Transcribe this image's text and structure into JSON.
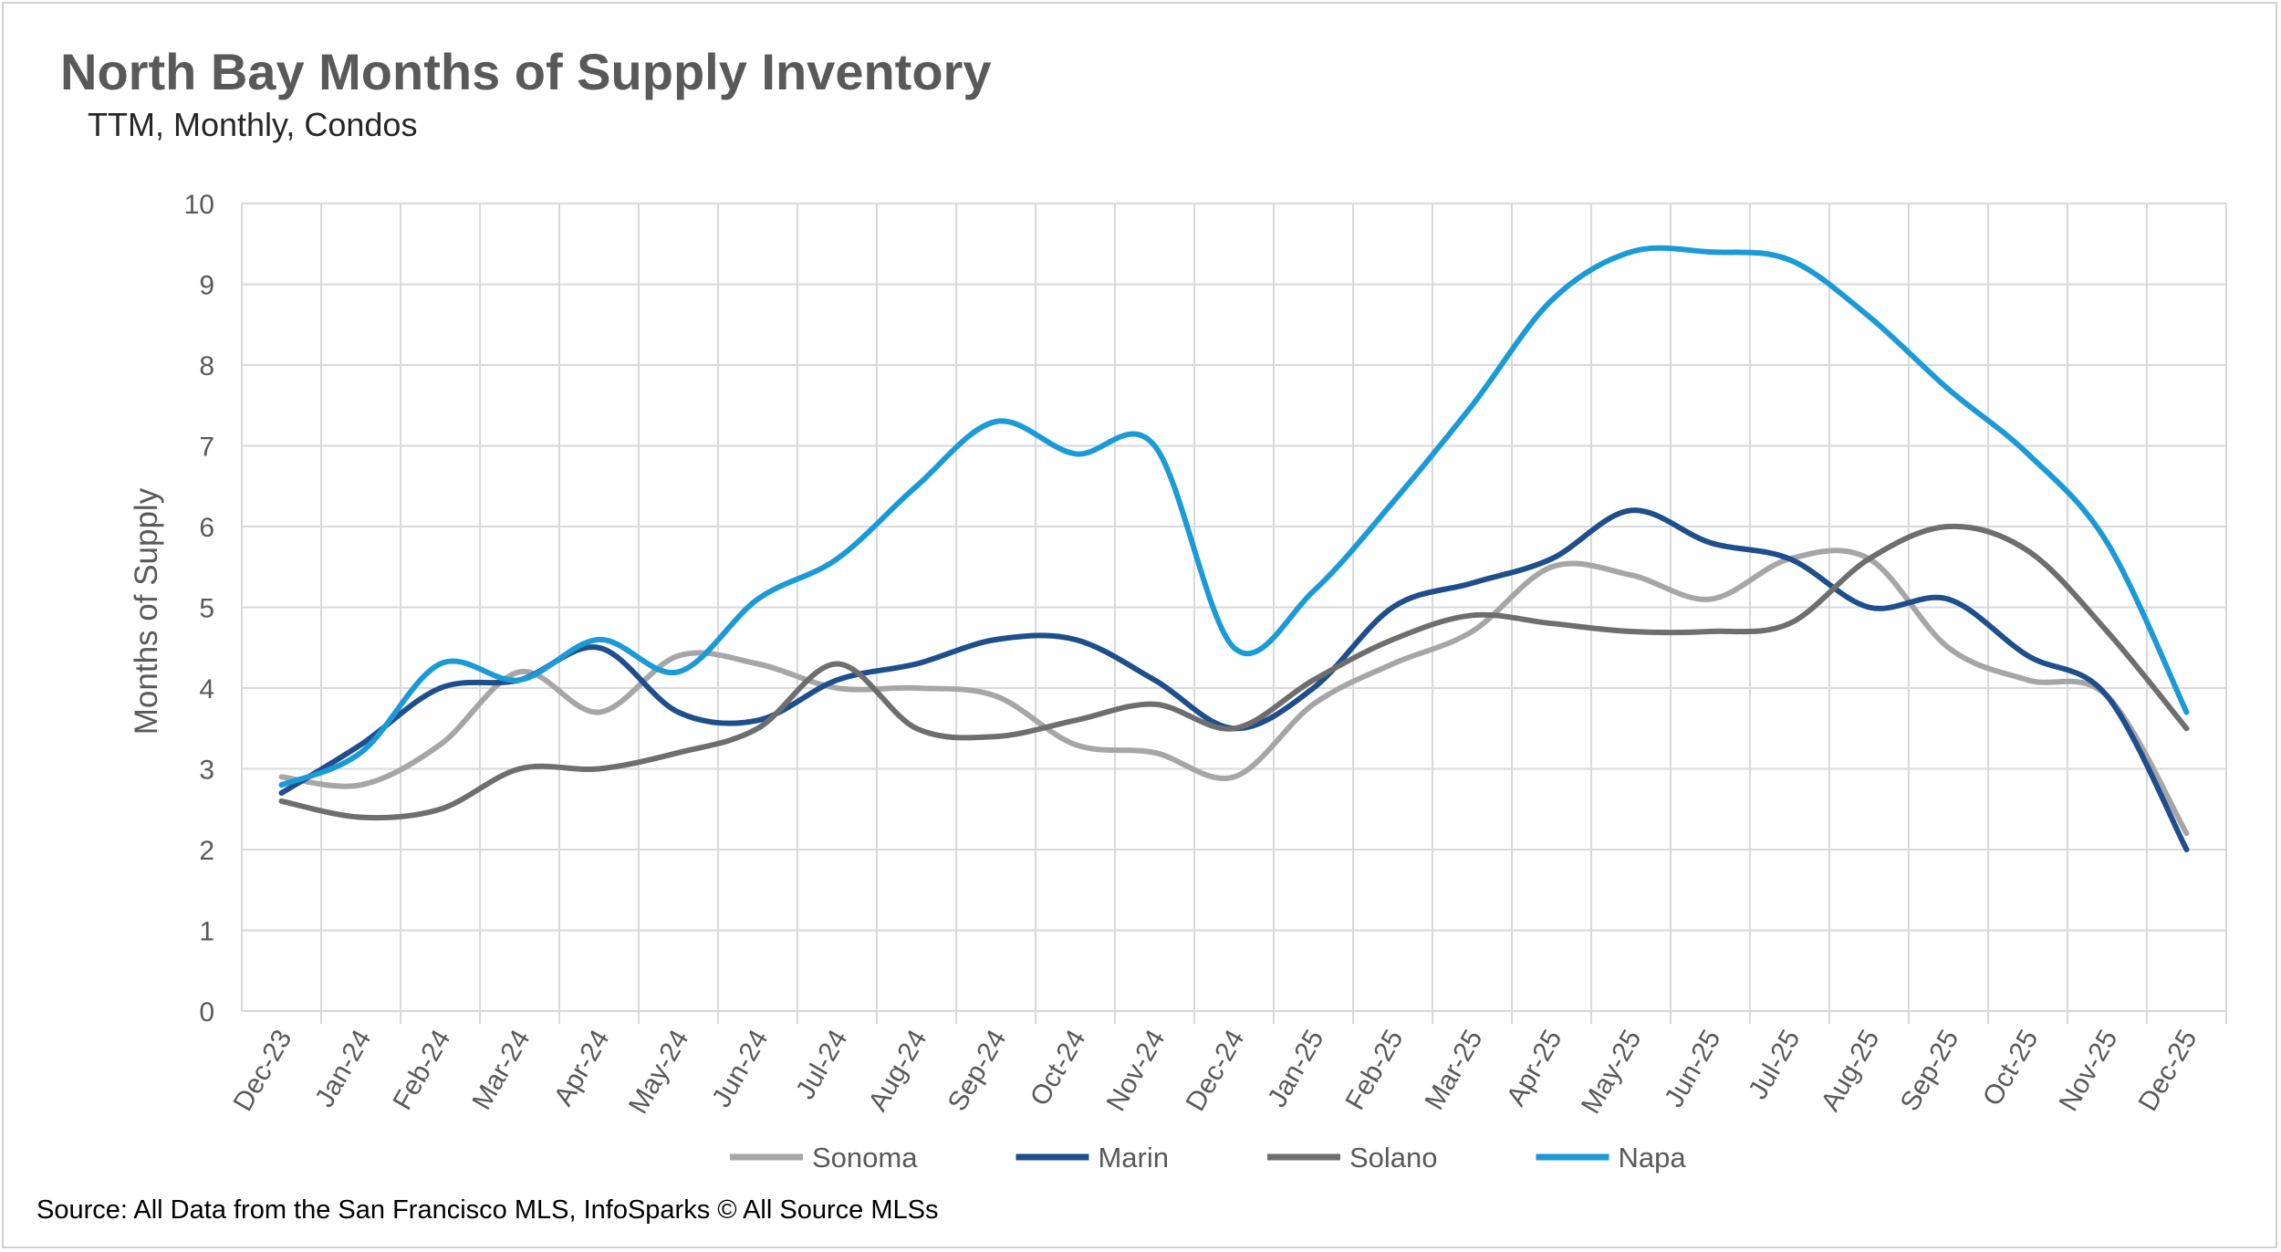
{
  "header": {
    "title": "North Bay Months of Supply Inventory",
    "subtitle": "TTM, Monthly, Condos"
  },
  "footer": {
    "source": "Source: All Data from the San Francisco MLS, InfoSparks © All Source MLSs"
  },
  "chart_data": {
    "type": "line",
    "title": "North Bay Months of Supply Inventory",
    "subtitle": "TTM, Monthly, Condos",
    "xlabel": "",
    "ylabel": "Months of Supply",
    "ylim": [
      0,
      10
    ],
    "yticks": [
      "0",
      "1",
      "2",
      "3",
      "4",
      "5",
      "6",
      "7",
      "8",
      "9",
      "10"
    ],
    "grid": true,
    "legend_position": "bottom",
    "categories": [
      "Dec-23",
      "Jan-24",
      "Feb-24",
      "Mar-24",
      "Apr-24",
      "May-24",
      "Jun-24",
      "Jul-24",
      "Aug-24",
      "Sep-24",
      "Oct-24",
      "Nov-24",
      "Dec-24",
      "Jan-25",
      "Feb-25",
      "Mar-25",
      "Apr-25",
      "May-25",
      "Jun-25",
      "Jul-25",
      "Aug-25",
      "Sep-25",
      "Oct-25",
      "Nov-25",
      "Dec-25"
    ],
    "series": [
      {
        "name": "Sonoma",
        "color": "#a6a6a6",
        "values": [
          2.9,
          2.8,
          3.3,
          4.2,
          3.7,
          4.4,
          4.3,
          4.0,
          4.0,
          3.9,
          3.3,
          3.2,
          2.9,
          3.8,
          4.3,
          4.7,
          5.5,
          5.4,
          5.1,
          5.6,
          5.6,
          4.5,
          4.1,
          3.9,
          2.2
        ]
      },
      {
        "name": "Marin",
        "color": "#1f4e8c",
        "values": [
          2.7,
          3.3,
          4.0,
          4.1,
          4.5,
          3.7,
          3.6,
          4.1,
          4.3,
          4.6,
          4.6,
          4.1,
          3.5,
          4.0,
          5.0,
          5.3,
          5.6,
          6.2,
          5.8,
          5.6,
          5.0,
          5.1,
          4.4,
          3.9,
          2.0
        ]
      },
      {
        "name": "Solano",
        "color": "#6e6e6e",
        "values": [
          2.6,
          2.4,
          2.5,
          3.0,
          3.0,
          3.2,
          3.5,
          4.3,
          3.5,
          3.4,
          3.6,
          3.8,
          3.5,
          4.1,
          4.6,
          4.9,
          4.8,
          4.7,
          4.7,
          4.8,
          5.6,
          6.0,
          5.7,
          4.7,
          3.5
        ]
      },
      {
        "name": "Napa",
        "color": "#1a9ad6",
        "values": [
          2.8,
          3.2,
          4.3,
          4.1,
          4.6,
          4.2,
          5.1,
          5.6,
          6.5,
          7.3,
          6.9,
          7.0,
          4.5,
          5.2,
          6.3,
          7.5,
          8.8,
          9.4,
          9.4,
          9.3,
          8.6,
          7.7,
          6.9,
          5.8,
          3.7
        ]
      }
    ]
  }
}
